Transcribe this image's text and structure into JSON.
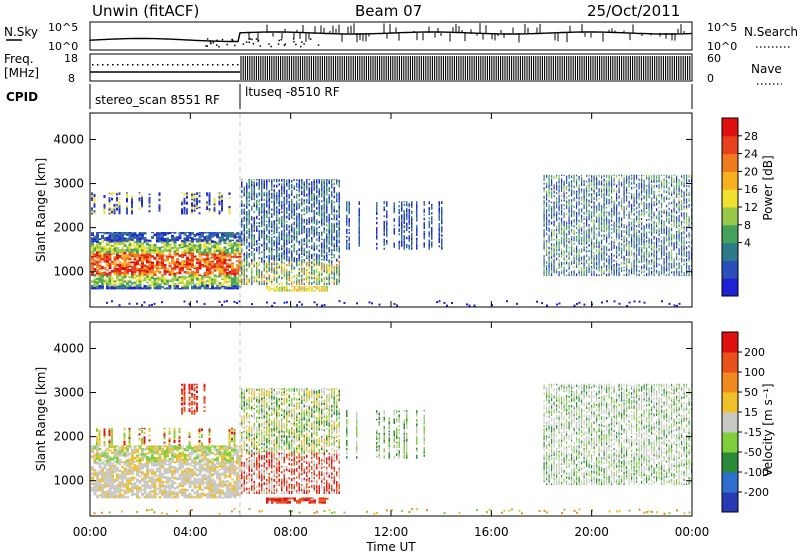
{
  "header": {
    "station": "Unwin (fitACF)",
    "beam": "Beam 07",
    "date": "25/Oct/2011"
  },
  "noise_panel": {
    "left_label": "N.Sky",
    "right_label": "N.Search",
    "ticks_left": [
      "10^5",
      "10^0"
    ],
    "ticks_right": [
      "10^5",
      "10^0"
    ]
  },
  "freq_panel": {
    "left_label": "Freq.",
    "unit_label": "[MHz]",
    "right_label": "Nave",
    "ticks_left": [
      "18",
      "8"
    ],
    "ticks_right": [
      "60",
      "0"
    ]
  },
  "cpid_panel": {
    "label": "CPID",
    "programs": [
      "stereo_scan 8551 RF",
      "ltuseq -8510 RF"
    ]
  },
  "chart_data": [
    {
      "type": "heatmap",
      "name": "power",
      "ylabel": "Slant Range [km]",
      "ylim": [
        200,
        4600
      ],
      "y_ticks": [
        1000,
        2000,
        3000,
        4000
      ],
      "colorbar": {
        "label": "Power [dB]",
        "ticks": [
          "28",
          "24",
          "20",
          "16",
          "12",
          "8",
          "4"
        ],
        "colors": [
          "#1e22d4",
          "#2a4fb8",
          "#2f7a8a",
          "#44a35a",
          "#96c94a",
          "#f0e030",
          "#f6b020",
          "#f07a1e",
          "#e8401c",
          "#e01010"
        ]
      }
    },
    {
      "type": "heatmap",
      "name": "velocity",
      "ylabel": "Slant Range [km]",
      "xlabel": "Time UT",
      "ylim": [
        200,
        4600
      ],
      "y_ticks": [
        1000,
        2000,
        3000,
        4000
      ],
      "x_ticks": [
        "00:00",
        "04:00",
        "08:00",
        "12:00",
        "16:00",
        "20:00",
        "00:00"
      ],
      "colorbar": {
        "label": "Velocity [m s⁻¹]",
        "ticks": [
          "200",
          "100",
          "50",
          "15",
          "-15",
          "-50",
          "-100",
          "-200"
        ],
        "colors": [
          "#2a3ab4",
          "#2f6fd0",
          "#2a8a3a",
          "#7fcf3a",
          "#c8c8c4",
          "#f0c02a",
          "#f08a1e",
          "#e8501c",
          "#e01010"
        ]
      }
    }
  ]
}
